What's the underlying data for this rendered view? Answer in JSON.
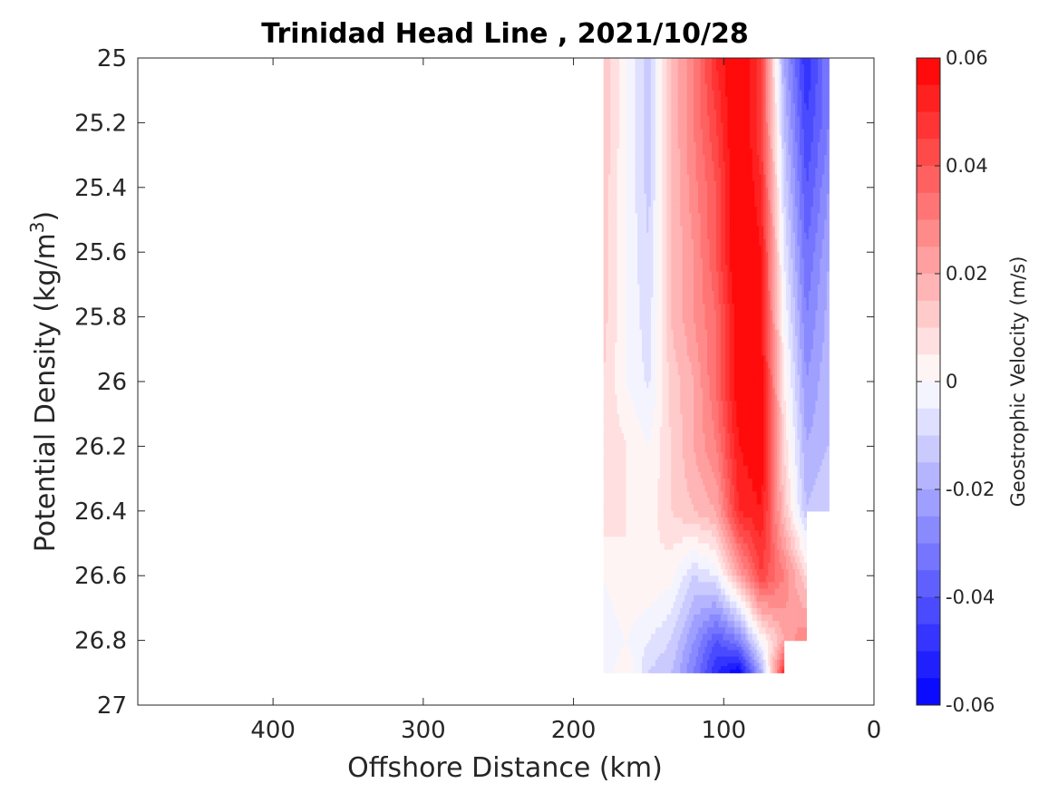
{
  "chart_data": {
    "type": "heatmap",
    "subtype": "filled-contour section",
    "title": "Trinidad Head Line , 2021/10/28",
    "xlabel": "Offshore Distance (km)",
    "ylabel": "Potential Density (kg/m",
    "ylabel_superscript": "3",
    "ylabel_suffix": ")",
    "colorbar_label": "Geostrophic Velocity (m/s)",
    "x_axis_reversed": true,
    "y_axis_reversed": true,
    "xlim": [
      0,
      490
    ],
    "ylim": [
      25,
      27
    ],
    "xticks": [
      400,
      300,
      200,
      100,
      0
    ],
    "xtick_labels": [
      "400",
      "300",
      "200",
      "100",
      "0"
    ],
    "yticks": [
      25,
      25.2,
      25.4,
      25.6,
      25.8,
      26,
      26.2,
      26.4,
      26.6,
      26.8,
      27
    ],
    "ytick_labels": [
      "25",
      "25.2",
      "25.4",
      "25.6",
      "25.8",
      "26",
      "26.2",
      "26.4",
      "26.6",
      "26.8",
      "27"
    ],
    "clim": [
      -0.06,
      0.06
    ],
    "colorbar_ticks": [
      0.06,
      0.04,
      0.02,
      0,
      -0.02,
      -0.04,
      -0.06
    ],
    "colorbar_tick_labels": [
      "0.06",
      "0.04",
      "0.02",
      "0",
      "-0.02",
      "-0.04",
      "-0.06"
    ],
    "colorbar_levels": 24,
    "colormap": {
      "negative": "#0000ff",
      "zero": "#ffffff",
      "positive": "#ff0000"
    },
    "grid": false,
    "data_extent": {
      "x": [
        30,
        180
      ],
      "y": [
        25,
        26.9
      ]
    },
    "x": [
      180,
      165,
      150,
      135,
      120,
      105,
      90,
      75,
      60,
      45,
      30
    ],
    "y": [
      25,
      25.2,
      25.4,
      25.6,
      25.8,
      26,
      26.2,
      26.4,
      26.6,
      26.8,
      26.9
    ],
    "values": [
      [
        0.015,
        0.0,
        -0.012,
        0.015,
        0.03,
        0.05,
        0.065,
        0.045,
        -0.02,
        -0.05,
        -0.03
      ],
      [
        0.015,
        0.0,
        -0.012,
        0.015,
        0.03,
        0.045,
        0.065,
        0.045,
        -0.015,
        -0.045,
        -0.03
      ],
      [
        0.013,
        0.0,
        -0.012,
        0.015,
        0.028,
        0.04,
        0.065,
        0.05,
        -0.01,
        -0.04,
        -0.025
      ],
      [
        0.012,
        0.0,
        -0.01,
        0.015,
        0.025,
        0.04,
        0.065,
        0.055,
        -0.005,
        -0.035,
        -0.02
      ],
      [
        0.012,
        0.0,
        -0.008,
        0.015,
        0.025,
        0.035,
        0.06,
        0.055,
        0.0,
        -0.03,
        -0.018
      ],
      [
        0.01,
        0.0,
        -0.006,
        0.012,
        0.02,
        0.035,
        0.06,
        0.06,
        0.005,
        -0.025,
        -0.016
      ],
      [
        0.01,
        0.005,
        0.0,
        0.01,
        0.02,
        0.03,
        0.055,
        0.06,
        0.01,
        -0.02,
        -0.015
      ],
      [
        0.008,
        0.005,
        0.002,
        0.01,
        0.015,
        0.02,
        0.05,
        0.055,
        0.015,
        -0.015,
        -0.01
      ],
      [
        0.0,
        0.005,
        0.005,
        0.002,
        -0.01,
        -0.005,
        0.02,
        0.045,
        0.03,
        0.01,
        null
      ],
      [
        -0.005,
        0.0,
        -0.005,
        -0.01,
        -0.025,
        -0.04,
        -0.03,
        0.0,
        0.02,
        0.03,
        null
      ],
      [
        -0.005,
        0.005,
        -0.01,
        -0.015,
        -0.03,
        -0.05,
        -0.06,
        -0.02,
        0.05,
        null,
        null
      ]
    ]
  }
}
